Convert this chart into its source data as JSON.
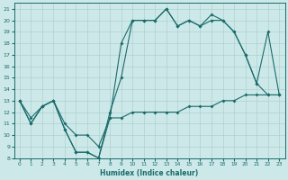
{
  "xlabel": "Humidex (Indice chaleur)",
  "bg_color": "#cde8e8",
  "line_color": "#1a6b6b",
  "xlim": [
    -0.5,
    23.5
  ],
  "ylim": [
    8,
    21.5
  ],
  "yticks": [
    8,
    9,
    10,
    11,
    12,
    13,
    14,
    15,
    16,
    17,
    18,
    19,
    20,
    21
  ],
  "xticks": [
    0,
    1,
    2,
    3,
    4,
    5,
    6,
    7,
    8,
    9,
    10,
    11,
    12,
    13,
    14,
    15,
    16,
    17,
    18,
    19,
    20,
    21,
    22,
    23
  ],
  "line1_x": [
    0,
    1,
    2,
    3,
    4,
    5,
    6,
    7,
    8,
    9,
    10,
    11,
    12,
    13,
    14,
    15,
    16,
    17,
    18,
    19,
    20,
    21,
    22,
    23
  ],
  "line1_y": [
    13,
    11,
    12.5,
    13,
    10.5,
    8.5,
    8.5,
    8,
    12,
    15,
    20,
    20,
    20,
    21,
    19.5,
    20,
    19.5,
    20,
    20,
    19,
    17,
    14.5,
    19,
    13.5
  ],
  "line2_x": [
    0,
    1,
    2,
    3,
    4,
    5,
    6,
    7,
    8,
    9,
    10,
    11,
    12,
    13,
    14,
    15,
    16,
    17,
    18,
    19,
    20,
    21,
    22,
    23
  ],
  "line2_y": [
    13,
    11,
    12.5,
    13,
    10.5,
    8.5,
    8.5,
    8,
    11.5,
    18,
    20,
    20,
    20,
    21,
    19.5,
    20,
    19.5,
    20.5,
    20,
    19,
    17,
    14.5,
    13.5,
    13.5
  ],
  "line3_x": [
    0,
    1,
    2,
    3,
    4,
    5,
    6,
    7,
    8,
    9,
    10,
    11,
    12,
    13,
    14,
    15,
    16,
    17,
    18,
    19,
    20,
    21,
    22,
    23
  ],
  "line3_y": [
    13,
    11.5,
    12.5,
    13,
    11,
    10,
    10,
    9,
    11.5,
    11.5,
    12,
    12,
    12,
    12,
    12,
    12.5,
    12.5,
    12.5,
    13,
    13,
    13.5,
    13.5,
    13.5,
    13.5
  ]
}
